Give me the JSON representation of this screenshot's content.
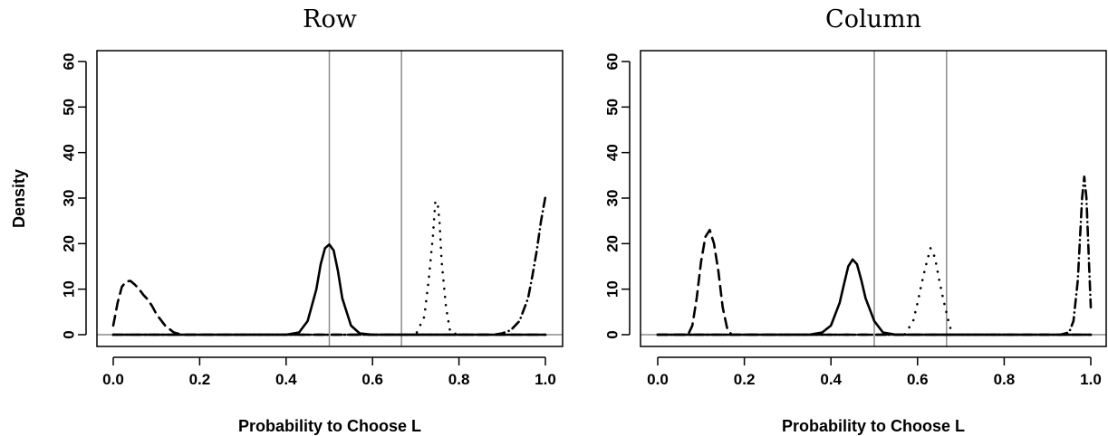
{
  "chart_data": [
    {
      "type": "line",
      "title": "Row",
      "xlabel": "Probability to Choose L",
      "ylabel": "Density",
      "xlim": [
        0,
        1
      ],
      "ylim": [
        0,
        60
      ],
      "xticks": [
        0.0,
        0.2,
        0.4,
        0.6,
        0.8,
        1.0
      ],
      "xtick_labels": [
        "0.0",
        "0.2",
        "0.4",
        "0.6",
        "0.8",
        "1.0"
      ],
      "yticks": [
        0,
        10,
        20,
        30,
        40,
        50,
        60
      ],
      "ytick_labels": [
        "0",
        "10",
        "20",
        "30",
        "40",
        "50",
        "60"
      ],
      "grid": false,
      "reference_lines": {
        "vertical": [
          0.5,
          0.667
        ],
        "horizontal": [
          0
        ]
      },
      "series": [
        {
          "style": "solid",
          "x": [
            0.4,
            0.43,
            0.45,
            0.47,
            0.48,
            0.49,
            0.5,
            0.51,
            0.52,
            0.53,
            0.55,
            0.57,
            0.6
          ],
          "y": [
            0,
            0.5,
            3,
            10,
            15.5,
            19,
            19.8,
            18.5,
            14,
            8,
            2,
            0.3,
            0
          ]
        },
        {
          "style": "dashed",
          "x": [
            0.0,
            0.01,
            0.02,
            0.03,
            0.04,
            0.05,
            0.06,
            0.07,
            0.08,
            0.09,
            0.1,
            0.12,
            0.14,
            0.16
          ],
          "y": [
            2,
            7,
            10.5,
            11.7,
            11.8,
            11,
            10,
            8.7,
            7.7,
            6.3,
            4.5,
            2,
            0.5,
            0
          ]
        },
        {
          "style": "dotted",
          "x": [
            0.7,
            0.72,
            0.73,
            0.74,
            0.745,
            0.75,
            0.755,
            0.76,
            0.77,
            0.78,
            0.8
          ],
          "y": [
            0,
            4,
            12,
            22,
            29,
            29.3,
            25,
            16,
            6,
            0.5,
            0
          ]
        },
        {
          "style": "dashdot",
          "x": [
            0.88,
            0.9,
            0.92,
            0.94,
            0.96,
            0.97,
            0.98,
            0.99,
            1.0
          ],
          "y": [
            0,
            0.3,
            1,
            3,
            8,
            13,
            18.5,
            25,
            30.3
          ]
        }
      ]
    },
    {
      "type": "line",
      "title": "Column",
      "xlabel": "Probability to Choose L",
      "ylabel": "",
      "xlim": [
        0,
        1
      ],
      "ylim": [
        0,
        60
      ],
      "xticks": [
        0.0,
        0.2,
        0.4,
        0.6,
        0.8,
        1.0
      ],
      "xtick_labels": [
        "0.0",
        "0.2",
        "0.4",
        "0.6",
        "0.8",
        "1.0"
      ],
      "yticks": [
        0,
        10,
        20,
        30,
        40,
        50,
        60
      ],
      "ytick_labels": [
        "0",
        "10",
        "20",
        "30",
        "40",
        "50",
        "60"
      ],
      "grid": false,
      "reference_lines": {
        "vertical": [
          0.5,
          0.667
        ],
        "horizontal": [
          0
        ]
      },
      "series": [
        {
          "style": "solid",
          "x": [
            0.35,
            0.38,
            0.4,
            0.42,
            0.43,
            0.44,
            0.45,
            0.46,
            0.47,
            0.48,
            0.5,
            0.52,
            0.55
          ],
          "y": [
            0,
            0.5,
            2,
            7,
            11,
            15,
            16.5,
            15.5,
            12,
            8,
            3,
            0.5,
            0
          ]
        },
        {
          "style": "dashed",
          "x": [
            0.07,
            0.08,
            0.09,
            0.1,
            0.11,
            0.12,
            0.13,
            0.14,
            0.15,
            0.16,
            0.17
          ],
          "y": [
            0,
            2,
            8,
            16,
            21.5,
            23,
            20,
            14,
            6,
            1.5,
            0
          ]
        },
        {
          "style": "dotted",
          "x": [
            0.57,
            0.59,
            0.6,
            0.61,
            0.62,
            0.63,
            0.64,
            0.65,
            0.66,
            0.67,
            0.68
          ],
          "y": [
            0,
            3,
            7,
            11.5,
            15.5,
            19,
            17,
            12,
            7.5,
            3.5,
            0
          ]
        },
        {
          "style": "dashdot",
          "x": [
            0.93,
            0.95,
            0.96,
            0.97,
            0.98,
            0.985,
            0.99,
            0.995,
            1.0
          ],
          "y": [
            0,
            0.5,
            3,
            12,
            30,
            34.7,
            30,
            18,
            6
          ]
        }
      ]
    }
  ]
}
